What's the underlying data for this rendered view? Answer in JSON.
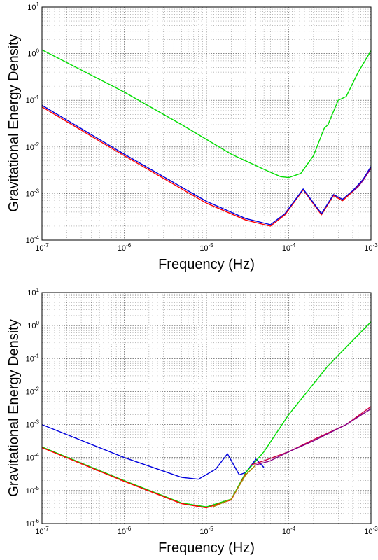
{
  "chart_data": [
    {
      "type": "line",
      "xlabel": "Frequency (Hz)",
      "ylabel": "Gravitational Energy Density",
      "xscale": "log",
      "yscale": "log",
      "xlim": [
        1e-07,
        0.001
      ],
      "ylim": [
        0.0001,
        10
      ],
      "grid": true,
      "x_ticks": [
        {
          "exp": "-7"
        },
        {
          "exp": "-6"
        },
        {
          "exp": "-5"
        },
        {
          "exp": "-4"
        },
        {
          "exp": "-3"
        }
      ],
      "y_ticks": [
        {
          "exp": "-4"
        },
        {
          "exp": "-3"
        },
        {
          "exp": "-2"
        },
        {
          "exp": "-1"
        },
        {
          "exp": "0"
        },
        {
          "exp": "1"
        }
      ],
      "series": [
        {
          "color": "#00dd00",
          "x": [
            1e-07,
            1e-06,
            5e-06,
            2e-05,
            5e-05,
            8e-05,
            0.0001,
            0.00014,
            0.0002,
            0.00027,
            0.0003,
            0.0004,
            0.0005,
            0.0007,
            0.001
          ],
          "y": [
            1.2,
            0.15,
            0.03,
            0.007,
            0.0033,
            0.0023,
            0.0022,
            0.0027,
            0.0065,
            0.025,
            0.03,
            0.1,
            0.12,
            0.4,
            1.15
          ]
        },
        {
          "color": "#ff0000",
          "x": [
            1e-07,
            1e-06,
            1e-05,
            3e-05,
            6e-05,
            9e-05,
            0.00015,
            0.00025,
            0.00035,
            0.00045,
            0.0006,
            0.0008,
            0.001
          ],
          "y": [
            0.072,
            0.0065,
            0.00062,
            0.00027,
            0.0002,
            0.00035,
            0.0012,
            0.00035,
            0.0009,
            0.0007,
            0.0011,
            0.0019,
            0.0035
          ]
        },
        {
          "color": "#0000dd",
          "x": [
            1e-07,
            1e-06,
            1e-05,
            3e-05,
            6e-05,
            9e-05,
            0.00015,
            0.00025,
            0.00035,
            0.00045,
            0.0006,
            0.0008,
            0.001
          ],
          "y": [
            0.078,
            0.007,
            0.00068,
            0.00029,
            0.000215,
            0.00037,
            0.00125,
            0.00037,
            0.00095,
            0.00075,
            0.00115,
            0.002,
            0.0038
          ]
        },
        {
          "color": "#880088",
          "x": [
            0.0006,
            0.0007,
            0.0008,
            0.0009,
            0.001
          ],
          "y": [
            0.0011,
            0.0014,
            0.0019,
            0.0026,
            0.0035
          ]
        }
      ]
    },
    {
      "type": "line",
      "xlabel": "Frequency (Hz)",
      "ylabel": "Gravitational Energy Density",
      "xscale": "log",
      "yscale": "log",
      "xlim": [
        1e-07,
        0.001
      ],
      "ylim": [
        1e-06,
        10
      ],
      "grid": true,
      "x_ticks": [
        {
          "exp": "-7"
        },
        {
          "exp": "-6"
        },
        {
          "exp": "-5"
        },
        {
          "exp": "-4"
        },
        {
          "exp": "-3"
        }
      ],
      "y_ticks": [
        {
          "exp": "-6"
        },
        {
          "exp": "-5"
        },
        {
          "exp": "-4"
        },
        {
          "exp": "-3"
        },
        {
          "exp": "-2"
        },
        {
          "exp": "-1"
        },
        {
          "exp": "0"
        },
        {
          "exp": "1"
        }
      ],
      "series": [
        {
          "color": "#0000dd",
          "x": [
            1e-07,
            1e-06,
            5e-06,
            8e-06,
            1.3e-05,
            1.8e-05,
            2.5e-05,
            3e-05,
            4e-05,
            5e-05
          ],
          "y": [
            0.001,
            0.0001,
            2.5e-05,
            2.2e-05,
            4.5e-05,
            0.00013,
            3e-05,
            3.5e-05,
            9e-05,
            5e-05
          ]
        },
        {
          "color": "#00dd00",
          "x": [
            1e-07,
            1e-06,
            5e-06,
            1e-05,
            2e-05,
            3e-05,
            5e-05,
            0.0001,
            0.0003,
            0.001
          ],
          "y": [
            0.00021,
            2e-05,
            4.2e-06,
            3.2e-06,
            5.5e-06,
            3.5e-05,
            0.00015,
            0.002,
            0.06,
            1.3
          ]
        },
        {
          "color": "#ff0000",
          "x": [
            1e-07,
            1e-06,
            5e-06,
            1e-05,
            2e-05,
            3e-05
          ],
          "y": [
            0.0002,
            1.9e-05,
            4e-06,
            3e-06,
            5.2e-06,
            3.2e-05
          ]
        },
        {
          "color": "#aa8800",
          "x": [
            1.2e-05,
            2e-05,
            3e-05,
            4e-05
          ],
          "y": [
            3.2e-06,
            5.5e-06,
            3e-05,
            6e-05
          ]
        },
        {
          "color": "#cc0044",
          "x": [
            3.5e-05,
            5e-05,
            0.0001,
            0.0002,
            0.0005,
            0.001
          ],
          "y": [
            6e-05,
            8e-05,
            0.00015,
            0.00035,
            0.001,
            0.0035
          ]
        },
        {
          "color": "#880088",
          "x": [
            4e-05,
            6e-05,
            0.0001,
            0.0002,
            0.0005,
            0.001
          ],
          "y": [
            6e-05,
            8e-05,
            0.00015,
            0.00032,
            0.001,
            0.003
          ]
        }
      ]
    }
  ]
}
